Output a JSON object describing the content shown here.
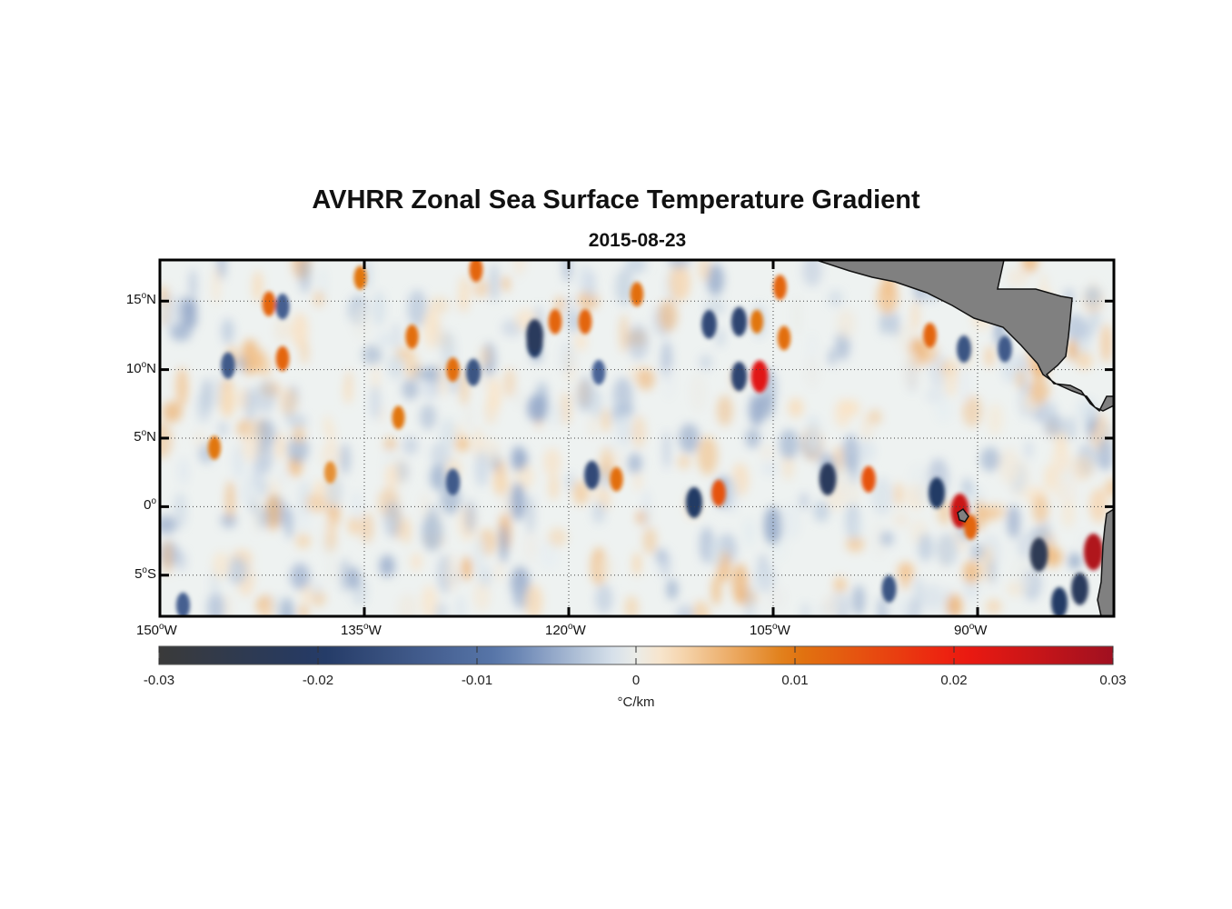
{
  "title": "AVHRR Zonal Sea Surface Temperature Gradient",
  "date": "2015-08-23",
  "map": {
    "lon_range": [
      -150,
      -80
    ],
    "lat_range": [
      -8,
      18
    ],
    "lon_ticks": [
      {
        "value": -150,
        "deg": "150",
        "hemi": "W"
      },
      {
        "value": -135,
        "deg": "135",
        "hemi": "W"
      },
      {
        "value": -120,
        "deg": "120",
        "hemi": "W"
      },
      {
        "value": -105,
        "deg": "105",
        "hemi": "W"
      },
      {
        "value": -90,
        "deg": "90",
        "hemi": "W"
      }
    ],
    "lat_ticks": [
      {
        "value": 15,
        "deg": "15",
        "hemi": "N"
      },
      {
        "value": 10,
        "deg": "10",
        "hemi": "N"
      },
      {
        "value": 5,
        "deg": "5",
        "hemi": "N"
      },
      {
        "value": 0,
        "deg": "0",
        "hemi": ""
      },
      {
        "value": -5,
        "deg": "5",
        "hemi": "S"
      }
    ],
    "land_color": "#808080",
    "grid_style": "dotted"
  },
  "colorbar": {
    "min": -0.03,
    "max": 0.03,
    "tick_labels": [
      "-0.03",
      "-0.02",
      "-0.01",
      "0",
      "0.01",
      "0.02",
      "0.03"
    ],
    "tick_values": [
      -0.03,
      -0.02,
      -0.01,
      0,
      0.01,
      0.02,
      0.03
    ],
    "units": "°C/km",
    "colors": [
      "#3a3a3a",
      "#243a66",
      "#5a78ac",
      "#e6eef2",
      "#f9e4c8",
      "#e07a10",
      "#ee1a10",
      "#a01020"
    ]
  },
  "chart_data": {
    "type": "heatmap",
    "title": "AVHRR Zonal Sea Surface Temperature Gradient",
    "subtitle": "2015-08-23",
    "variable": "Zonal SST gradient",
    "units": "°C/km",
    "value_range": [
      -0.03,
      0.03
    ],
    "x_axis": "longitude",
    "y_axis": "latitude",
    "features": [
      {
        "lon": -106,
        "lat": 9.5,
        "value": 0.022
      },
      {
        "lon": -107.5,
        "lat": 9.5,
        "value": -0.018
      },
      {
        "lon": -106.2,
        "lat": 13.5,
        "value": 0.01
      },
      {
        "lon": -107.5,
        "lat": 13.5,
        "value": -0.018
      },
      {
        "lon": -109.7,
        "lat": 13.3,
        "value": -0.017
      },
      {
        "lon": -117.8,
        "lat": 9.8,
        "value": -0.012
      },
      {
        "lon": -122.5,
        "lat": 12,
        "value": -0.02
      },
      {
        "lon": -122.5,
        "lat": 12.5,
        "value": -0.022
      },
      {
        "lon": -127,
        "lat": 9.8,
        "value": -0.015
      },
      {
        "lon": -128.5,
        "lat": 10,
        "value": 0.011
      },
      {
        "lon": -131.5,
        "lat": 12.4,
        "value": 0.011
      },
      {
        "lon": -141,
        "lat": 10.8,
        "value": 0.012
      },
      {
        "lon": -142,
        "lat": 14.8,
        "value": 0.012
      },
      {
        "lon": -141,
        "lat": 14.6,
        "value": -0.013
      },
      {
        "lon": -145,
        "lat": 10.3,
        "value": -0.014
      },
      {
        "lon": -118.8,
        "lat": 13.5,
        "value": 0.012
      },
      {
        "lon": -121,
        "lat": 13.5,
        "value": 0.012
      },
      {
        "lon": -115,
        "lat": 15.5,
        "value": 0.011
      },
      {
        "lon": -104.5,
        "lat": 16,
        "value": 0.012
      },
      {
        "lon": -104.2,
        "lat": 12.3,
        "value": 0.011
      },
      {
        "lon": -118.3,
        "lat": 2.3,
        "value": -0.017
      },
      {
        "lon": -116.5,
        "lat": 2,
        "value": 0.011
      },
      {
        "lon": -110.8,
        "lat": 0.3,
        "value": -0.02
      },
      {
        "lon": -109,
        "lat": 1,
        "value": 0.014
      },
      {
        "lon": -101,
        "lat": 2,
        "value": -0.022
      },
      {
        "lon": -98,
        "lat": 2,
        "value": 0.014
      },
      {
        "lon": -93,
        "lat": 1,
        "value": -0.02
      },
      {
        "lon": -91.3,
        "lat": -0.3,
        "value": 0.025
      },
      {
        "lon": -90.5,
        "lat": -1.5,
        "value": 0.012
      },
      {
        "lon": -85.5,
        "lat": -3.5,
        "value": -0.024
      },
      {
        "lon": -81.5,
        "lat": -3.3,
        "value": 0.028
      },
      {
        "lon": -82.5,
        "lat": -6,
        "value": -0.022
      },
      {
        "lon": -84,
        "lat": -7,
        "value": -0.02
      },
      {
        "lon": -96.5,
        "lat": -6,
        "value": -0.015
      },
      {
        "lon": -93.5,
        "lat": 12.5,
        "value": 0.012
      },
      {
        "lon": -91,
        "lat": 11.5,
        "value": -0.015
      },
      {
        "lon": -88,
        "lat": 11.5,
        "value": -0.014
      },
      {
        "lon": -135.3,
        "lat": 16.7,
        "value": 0.01
      },
      {
        "lon": -126.8,
        "lat": 17.3,
        "value": 0.012
      },
      {
        "lon": -132.5,
        "lat": 6.5,
        "value": 0.01
      },
      {
        "lon": -128.5,
        "lat": 1.8,
        "value": -0.014
      },
      {
        "lon": -146,
        "lat": 4.3,
        "value": 0.01
      },
      {
        "lon": -137.5,
        "lat": 2.5,
        "value": 0.008
      },
      {
        "lon": -148.3,
        "lat": -7.2,
        "value": -0.013
      }
    ]
  }
}
